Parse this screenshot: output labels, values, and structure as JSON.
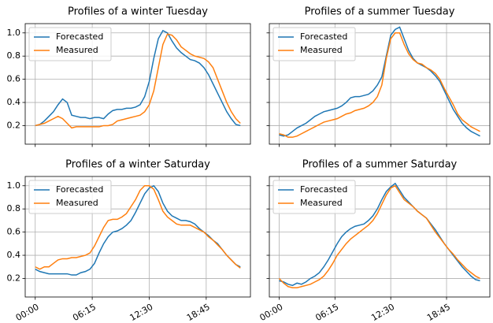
{
  "chart_data": [
    {
      "type": "line",
      "title": "Profiles of a winter Tuesday",
      "grid": true,
      "legend": "upper left",
      "x": [
        0,
        0.5,
        1,
        1.5,
        2,
        2.5,
        3,
        3.5,
        4,
        4.5,
        5,
        5.5,
        6,
        6.5,
        7,
        7.5,
        8,
        8.5,
        9,
        9.5,
        10,
        10.5,
        11,
        11.5,
        12,
        12.5,
        13,
        13.5,
        14,
        14.5,
        15,
        15.5,
        16,
        16.5,
        17,
        17.5,
        18,
        18.5,
        19,
        19.5,
        20,
        20.5,
        21,
        21.5,
        22,
        22.5
      ],
      "xlim": [
        -1.1,
        23.6
      ],
      "xticks": [
        0,
        6.25,
        12.5,
        18.75
      ],
      "ylim": [
        0.04,
        1.08
      ],
      "yticks": [
        0.2,
        0.4,
        0.6,
        0.8,
        {
          "value": 1,
          "label": "1.0"
        }
      ],
      "series": [
        {
          "name": "Forecasted",
          "color": "#1f77b4",
          "values": [
            0.2,
            0.21,
            0.24,
            0.28,
            0.32,
            0.38,
            0.43,
            0.4,
            0.29,
            0.28,
            0.27,
            0.27,
            0.26,
            0.27,
            0.27,
            0.26,
            0.3,
            0.33,
            0.34,
            0.34,
            0.35,
            0.35,
            0.36,
            0.38,
            0.45,
            0.58,
            0.78,
            0.95,
            1.02,
            1.0,
            0.93,
            0.87,
            0.83,
            0.8,
            0.77,
            0.76,
            0.74,
            0.7,
            0.64,
            0.56,
            0.48,
            0.4,
            0.32,
            0.26,
            0.21,
            0.2
          ]
        },
        {
          "name": "Measured",
          "color": "#ff7f0e",
          "values": [
            0.2,
            0.21,
            0.22,
            0.24,
            0.26,
            0.28,
            0.26,
            0.22,
            0.18,
            0.19,
            0.19,
            0.19,
            0.19,
            0.19,
            0.19,
            0.2,
            0.2,
            0.21,
            0.24,
            0.25,
            0.26,
            0.27,
            0.28,
            0.29,
            0.32,
            0.38,
            0.5,
            0.7,
            0.9,
            0.99,
            0.98,
            0.94,
            0.88,
            0.85,
            0.82,
            0.8,
            0.79,
            0.78,
            0.75,
            0.7,
            0.6,
            0.5,
            0.4,
            0.32,
            0.26,
            0.22
          ]
        }
      ]
    },
    {
      "type": "line",
      "title": "Profiles of a summer Tuesday",
      "grid": true,
      "legend": "upper left",
      "x": [
        0,
        0.5,
        1,
        1.5,
        2,
        2.5,
        3,
        3.5,
        4,
        4.5,
        5,
        5.5,
        6,
        6.5,
        7,
        7.5,
        8,
        8.5,
        9,
        9.5,
        10,
        10.5,
        11,
        11.5,
        12,
        12.5,
        13,
        13.5,
        14,
        14.5,
        15,
        15.5,
        16,
        16.5,
        17,
        17.5,
        18,
        18.5,
        19,
        19.5,
        20,
        20.5,
        21,
        21.5,
        22,
        22.5
      ],
      "xlim": [
        -1.1,
        23.6
      ],
      "xticks": [
        0,
        6.25,
        12.5,
        18.75
      ],
      "ylim": [
        0.04,
        1.08
      ],
      "yticks": [
        0.2,
        0.4,
        0.6,
        0.8,
        1
      ],
      "series": [
        {
          "name": "Forecasted",
          "color": "#1f77b4",
          "values": [
            0.12,
            0.11,
            0.12,
            0.15,
            0.18,
            0.2,
            0.22,
            0.25,
            0.28,
            0.3,
            0.32,
            0.33,
            0.34,
            0.35,
            0.37,
            0.4,
            0.44,
            0.45,
            0.45,
            0.46,
            0.47,
            0.5,
            0.55,
            0.62,
            0.8,
            0.98,
            1.03,
            1.05,
            0.95,
            0.85,
            0.78,
            0.74,
            0.72,
            0.7,
            0.67,
            0.63,
            0.58,
            0.5,
            0.42,
            0.34,
            0.28,
            0.22,
            0.18,
            0.15,
            0.13,
            0.11
          ]
        },
        {
          "name": "Measured",
          "color": "#ff7f0e",
          "values": [
            0.13,
            0.12,
            0.1,
            0.1,
            0.11,
            0.13,
            0.15,
            0.17,
            0.19,
            0.21,
            0.23,
            0.24,
            0.25,
            0.26,
            0.28,
            0.3,
            0.31,
            0.33,
            0.34,
            0.35,
            0.37,
            0.4,
            0.45,
            0.55,
            0.78,
            0.95,
            1.0,
            1.0,
            0.9,
            0.82,
            0.77,
            0.74,
            0.73,
            0.7,
            0.68,
            0.65,
            0.6,
            0.52,
            0.45,
            0.38,
            0.3,
            0.25,
            0.22,
            0.19,
            0.17,
            0.15
          ]
        }
      ]
    },
    {
      "type": "line",
      "title": "Profiles of a winter Saturday",
      "grid": true,
      "legend": "upper left",
      "x": [
        0,
        0.5,
        1,
        1.5,
        2,
        2.5,
        3,
        3.5,
        4,
        4.5,
        5,
        5.5,
        6,
        6.5,
        7,
        7.5,
        8,
        8.5,
        9,
        9.5,
        10,
        10.5,
        11,
        11.5,
        12,
        12.5,
        13,
        13.5,
        14,
        14.5,
        15,
        15.5,
        16,
        16.5,
        17,
        17.5,
        18,
        18.5,
        19,
        19.5,
        20,
        20.5,
        21,
        21.5,
        22,
        22.5
      ],
      "xlim": [
        -1.1,
        23.6
      ],
      "xticks": [
        {
          "value": 0,
          "label": "00:00"
        },
        {
          "value": 6.25,
          "label": "06:15"
        },
        {
          "value": 12.5,
          "label": "12:30"
        },
        {
          "value": 18.75,
          "label": "18:45"
        }
      ],
      "ylim": [
        0.04,
        1.08
      ],
      "yticks": [
        0.2,
        0.4,
        0.6,
        0.8,
        {
          "value": 1,
          "label": "1.0"
        }
      ],
      "series": [
        {
          "name": "Forecasted",
          "color": "#1f77b4",
          "values": [
            0.28,
            0.26,
            0.25,
            0.24,
            0.24,
            0.24,
            0.24,
            0.24,
            0.23,
            0.23,
            0.25,
            0.26,
            0.28,
            0.33,
            0.42,
            0.5,
            0.56,
            0.6,
            0.61,
            0.63,
            0.66,
            0.7,
            0.77,
            0.85,
            0.93,
            0.98,
            1.0,
            0.95,
            0.85,
            0.78,
            0.74,
            0.72,
            0.7,
            0.7,
            0.69,
            0.67,
            0.63,
            0.6,
            0.57,
            0.53,
            0.5,
            0.45,
            0.4,
            0.36,
            0.32,
            0.3
          ]
        },
        {
          "name": "Measured",
          "color": "#ff7f0e",
          "values": [
            0.3,
            0.28,
            0.3,
            0.3,
            0.33,
            0.36,
            0.37,
            0.37,
            0.38,
            0.38,
            0.39,
            0.4,
            0.42,
            0.48,
            0.56,
            0.64,
            0.7,
            0.71,
            0.71,
            0.73,
            0.76,
            0.82,
            0.88,
            0.96,
            1.0,
            1.0,
            0.97,
            0.88,
            0.78,
            0.73,
            0.7,
            0.67,
            0.66,
            0.66,
            0.66,
            0.64,
            0.62,
            0.6,
            0.56,
            0.53,
            0.49,
            0.45,
            0.4,
            0.36,
            0.32,
            0.29
          ]
        }
      ]
    },
    {
      "type": "line",
      "title": "Profiles of a summer Saturday",
      "grid": true,
      "legend": "upper left",
      "x": [
        0,
        0.5,
        1,
        1.5,
        2,
        2.5,
        3,
        3.5,
        4,
        4.5,
        5,
        5.5,
        6,
        6.5,
        7,
        7.5,
        8,
        8.5,
        9,
        9.5,
        10,
        10.5,
        11,
        11.5,
        12,
        12.5,
        13,
        13.5,
        14,
        14.5,
        15,
        15.5,
        16,
        16.5,
        17,
        17.5,
        18,
        18.5,
        19,
        19.5,
        20,
        20.5,
        21,
        21.5,
        22,
        22.5
      ],
      "xlim": [
        -1.1,
        23.6
      ],
      "xticks": [
        {
          "value": 0,
          "label": "00:00"
        },
        {
          "value": 6.25,
          "label": "06:15"
        },
        {
          "value": 12.5,
          "label": "12:30"
        },
        {
          "value": 18.75,
          "label": "18:45"
        }
      ],
      "ylim": [
        0.04,
        1.08
      ],
      "yticks": [
        0.2,
        0.4,
        0.6,
        0.8,
        1
      ],
      "series": [
        {
          "name": "Forecasted",
          "color": "#1f77b4",
          "values": [
            0.18,
            0.17,
            0.15,
            0.14,
            0.16,
            0.15,
            0.17,
            0.2,
            0.22,
            0.25,
            0.3,
            0.36,
            0.43,
            0.5,
            0.56,
            0.6,
            0.63,
            0.65,
            0.66,
            0.67,
            0.7,
            0.74,
            0.8,
            0.88,
            0.95,
            0.99,
            1.02,
            0.96,
            0.9,
            0.86,
            0.82,
            0.78,
            0.75,
            0.72,
            0.67,
            0.62,
            0.56,
            0.5,
            0.45,
            0.4,
            0.35,
            0.3,
            0.26,
            0.22,
            0.19,
            0.18
          ]
        },
        {
          "name": "Measured",
          "color": "#ff7f0e",
          "values": [
            0.2,
            0.16,
            0.13,
            0.12,
            0.12,
            0.13,
            0.14,
            0.15,
            0.17,
            0.19,
            0.22,
            0.27,
            0.33,
            0.4,
            0.45,
            0.5,
            0.54,
            0.57,
            0.6,
            0.63,
            0.66,
            0.7,
            0.76,
            0.84,
            0.92,
            0.98,
            1.0,
            0.94,
            0.88,
            0.85,
            0.82,
            0.78,
            0.75,
            0.72,
            0.66,
            0.6,
            0.55,
            0.5,
            0.45,
            0.41,
            0.36,
            0.32,
            0.28,
            0.25,
            0.22,
            0.2
          ]
        }
      ]
    }
  ]
}
